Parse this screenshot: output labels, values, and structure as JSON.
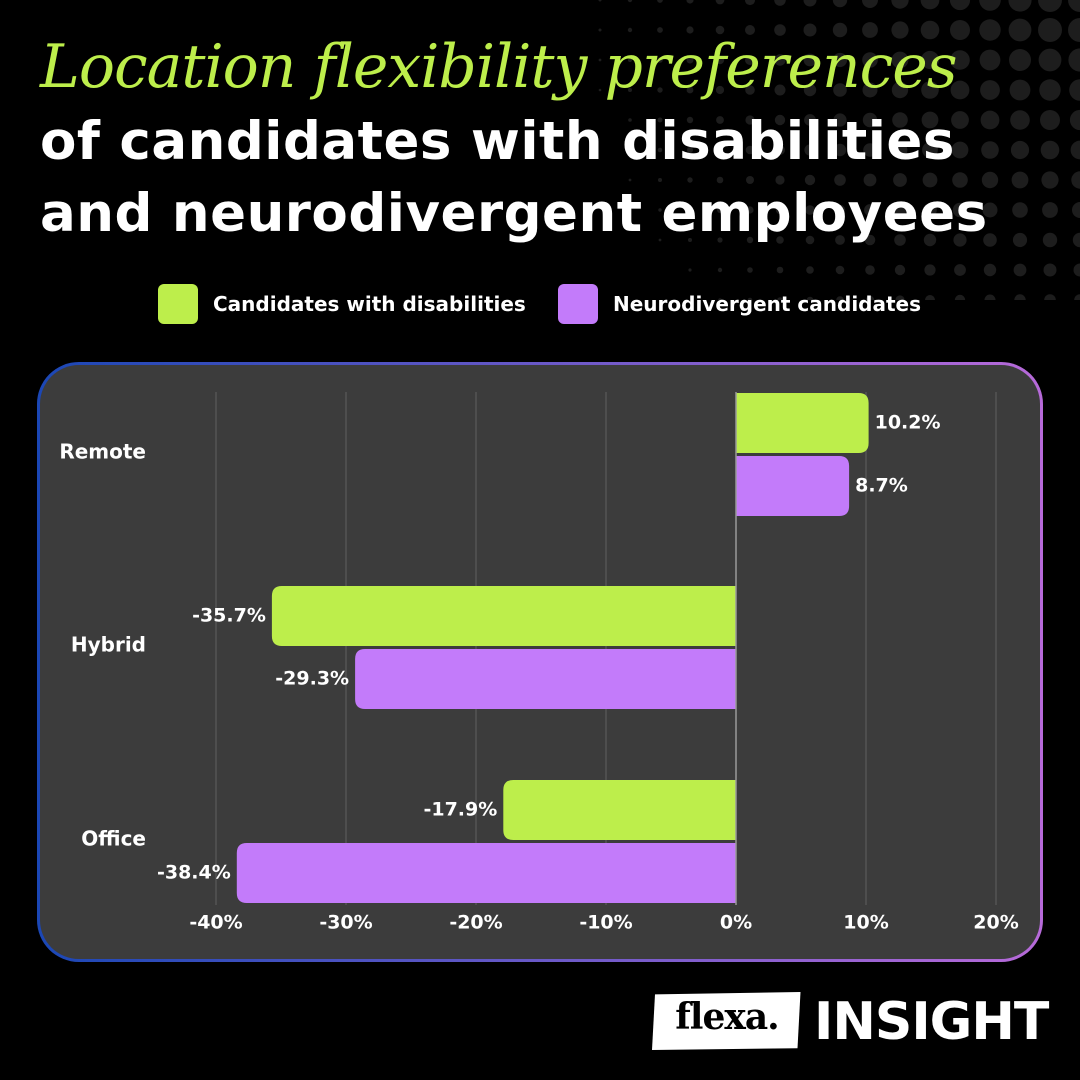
{
  "title": {
    "line1": "Location flexibility preferences",
    "line2": "of candidates with disabilities",
    "line3": "and neurodivergent employees"
  },
  "colors": {
    "accent_green": "#bdee4b",
    "accent_purple": "#c37bfa",
    "panel_bg": "#3c3c3c",
    "border_start": "#1b47b5",
    "border_end": "#b76ad9",
    "background": "#000000"
  },
  "legend": [
    {
      "label": "Candidates with disabilities",
      "color": "#bdee4b"
    },
    {
      "label": "Neurodivergent candidates",
      "color": "#c37bfa"
    }
  ],
  "chart_data": {
    "type": "bar",
    "orientation": "horizontal",
    "categories": [
      "Remote",
      "Hybrid",
      "Office"
    ],
    "series": [
      {
        "name": "Candidates with disabilities",
        "values": [
          10.2,
          -35.7,
          -17.9
        ],
        "labels": [
          "10.2%",
          "-35.7%",
          "-17.9%"
        ],
        "color": "#bdee4b"
      },
      {
        "name": "Neurodivergent candidates",
        "values": [
          8.7,
          -29.3,
          -38.4
        ],
        "labels": [
          "8.7%",
          "-29.3%",
          "-38.4%"
        ],
        "color": "#c37bfa"
      }
    ],
    "xlim": [
      -40,
      20
    ],
    "xticks": [
      -40,
      -30,
      -20,
      -10,
      0,
      10,
      20
    ],
    "xtick_labels": [
      "-40%",
      "-30%",
      "-20%",
      "-10%",
      "0%",
      "10%",
      "20%"
    ],
    "grid": true,
    "legend_position": "top"
  },
  "brand": {
    "logo_text": "flexa.",
    "word": "INSIGHT"
  }
}
